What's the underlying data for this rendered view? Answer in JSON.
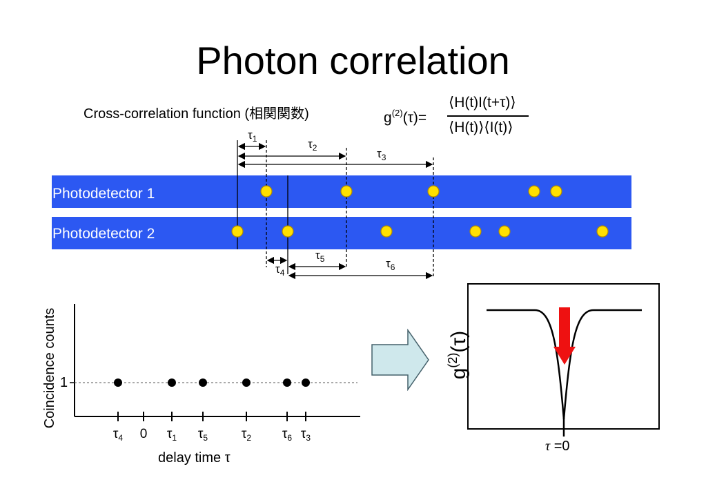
{
  "title": "Photon correlation",
  "subtitle": "Cross-correlation function (相関関数)",
  "formula": {
    "lhs_g": "g",
    "lhs_sup": "(2)",
    "lhs_arg": "(τ)=",
    "numerator": "⟨H(t)I(t+τ)⟩",
    "denominator": "⟨H(t)⟩⟨I(t)⟩"
  },
  "detectors": [
    {
      "label": "Photodetector 1",
      "photons": [
        386,
        502,
        628,
        774,
        806
      ]
    },
    {
      "label": "Photodetector 2",
      "photons": [
        344,
        417,
        560,
        689,
        731,
        873
      ]
    }
  ],
  "intervals": [
    {
      "sym": "τ",
      "sub": "1"
    },
    {
      "sym": "τ",
      "sub": "2"
    },
    {
      "sym": "τ",
      "sub": "3"
    },
    {
      "sym": "τ",
      "sub": "4"
    },
    {
      "sym": "τ",
      "sub": "5"
    },
    {
      "sym": "τ",
      "sub": "6"
    }
  ],
  "colors": {
    "detector_bar": "#2c58f2",
    "photon_fill": "#ffe000",
    "photon_edge": "#b08a00",
    "arrow_fill": "#cfe8ec",
    "arrow_stroke": "#44606a",
    "dip_arrow": "#ee1111"
  },
  "chart_data": {
    "type": "scatter",
    "ylabel": "Coincidence counts",
    "xlabel": "delay time τ",
    "x_ticks": [
      {
        "sym": "τ",
        "sub": "4"
      },
      {
        "sym": "0",
        "sub": ""
      },
      {
        "sym": "τ",
        "sub": "1"
      },
      {
        "sym": "τ",
        "sub": "5"
      },
      {
        "sym": "τ",
        "sub": "2"
      },
      {
        "sym": "τ",
        "sub": "6"
      },
      {
        "sym": "τ",
        "sub": "3"
      }
    ],
    "points": [
      {
        "x": "τ4",
        "y": 1
      },
      {
        "x": "τ1",
        "y": 1
      },
      {
        "x": "τ5",
        "y": 1
      },
      {
        "x": "τ2",
        "y": 1
      },
      {
        "x": "τ6",
        "y": 1
      },
      {
        "x": "τ3",
        "y": 1
      }
    ],
    "y_reference_label": "1",
    "reference_line": "dashed"
  },
  "g2_panel": {
    "ylabel_g": "g",
    "ylabel_sup": "(2)",
    "ylabel_arg": "(τ)",
    "xlabel_sym": "τ",
    "xlabel_rest": " =0",
    "curve": "dip to minimum at τ=0"
  }
}
